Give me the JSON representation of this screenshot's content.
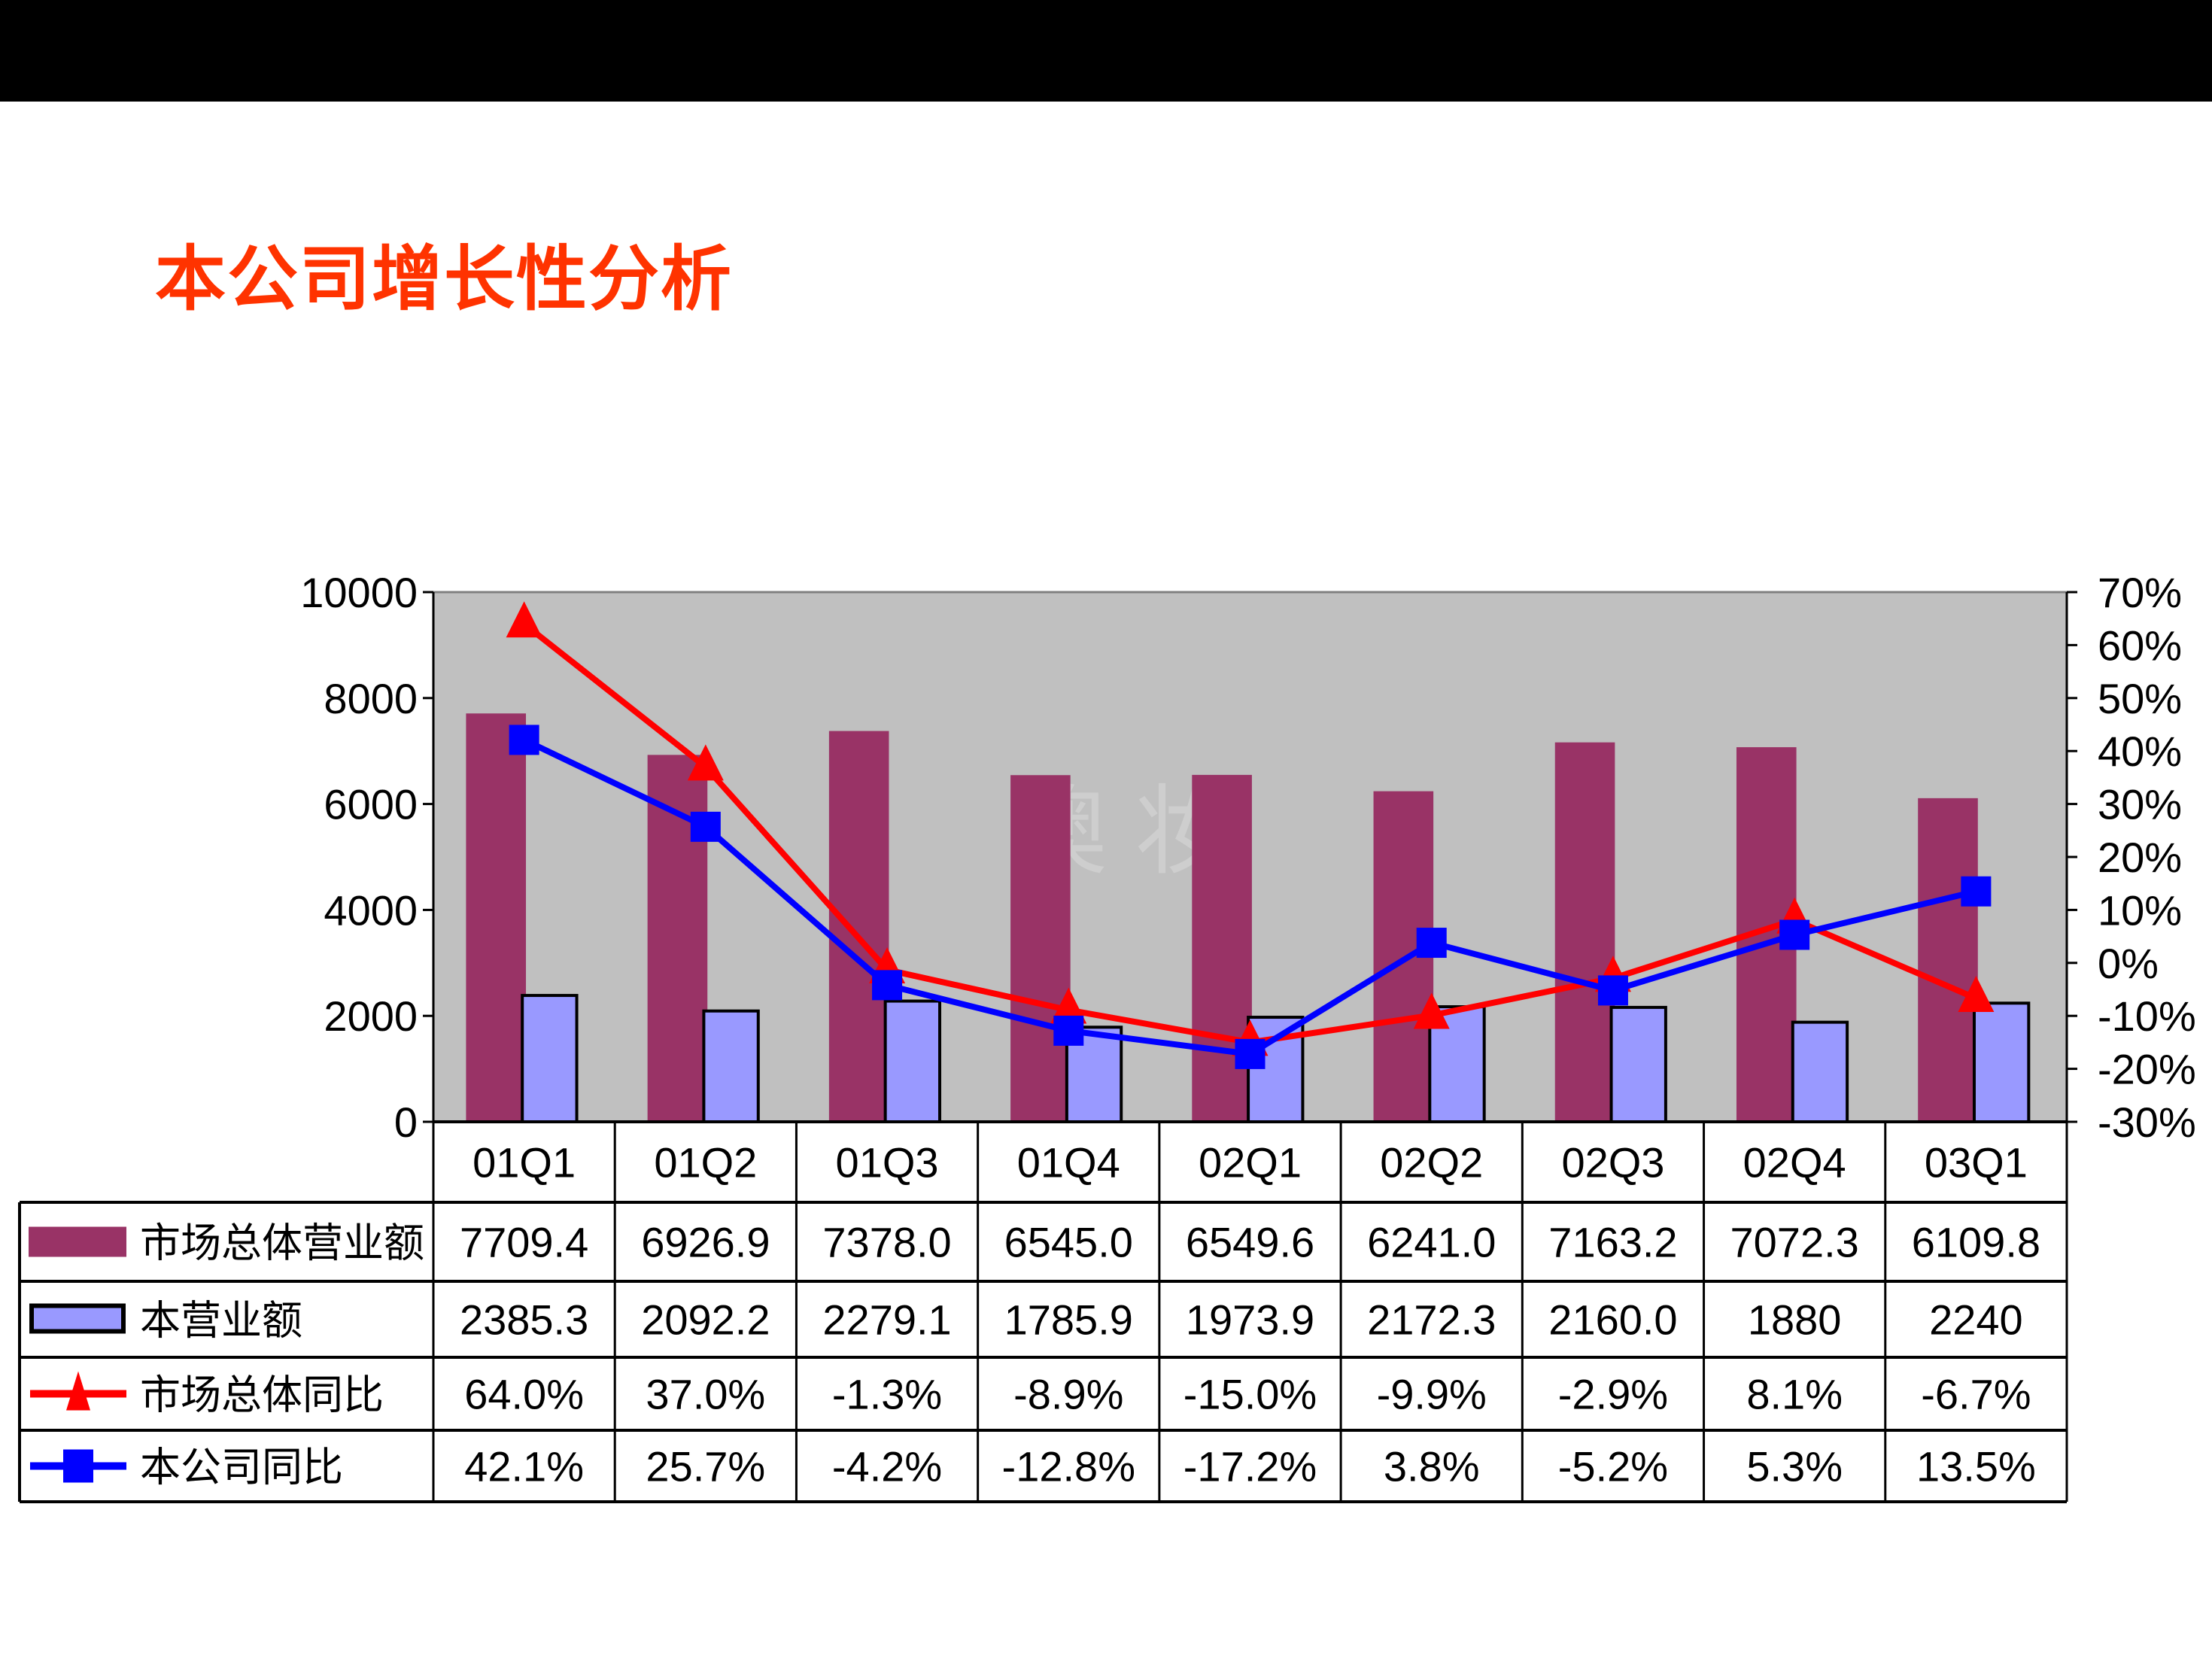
{
  "slide": {
    "title": "本公司增长性分析",
    "watermark": "澳  妆"
  },
  "chart_data": {
    "type": "bar+line",
    "categories": [
      "01Q1",
      "01Q2",
      "01Q3",
      "01Q4",
      "02Q1",
      "02Q2",
      "02Q3",
      "02Q4",
      "03Q1"
    ],
    "left_axis": {
      "ylim": [
        0,
        10000
      ],
      "ticks": [
        "0",
        "2000",
        "4000",
        "6000",
        "8000",
        "10000"
      ],
      "tick_values": [
        0,
        2000,
        4000,
        6000,
        8000,
        10000
      ]
    },
    "right_axis": {
      "ylim": [
        -30,
        70
      ],
      "ticks": [
        "-30%",
        "-20%",
        "-10%",
        "0%",
        "10%",
        "20%",
        "30%",
        "40%",
        "50%",
        "60%",
        "70%"
      ],
      "tick_values": [
        -30,
        -20,
        -10,
        0,
        10,
        20,
        30,
        40,
        50,
        60,
        70
      ]
    },
    "plot_background": "#c0c0c0",
    "grid": false,
    "legend": "data-table",
    "series": [
      {
        "name": "市场总体营业额",
        "type": "bar",
        "axis": "left",
        "color": "#993366",
        "values": [
          7709.4,
          6926.9,
          7378.0,
          6545.0,
          6549.6,
          6241.0,
          7163.2,
          7072.3,
          6109.8
        ],
        "labels": [
          "7709.4",
          "6926.9",
          "7378.0",
          "6545.0",
          "6549.6",
          "6241.0",
          "7163.2",
          "7072.3",
          "6109.8"
        ]
      },
      {
        "name": "本营业额",
        "type": "bar",
        "axis": "left",
        "color": "#9999ff",
        "values": [
          2385.3,
          2092.2,
          2279.1,
          1785.9,
          1973.9,
          2172.3,
          2160.0,
          1880,
          2240
        ],
        "labels": [
          "2385.3",
          "2092.2",
          "2279.1",
          "1785.9",
          "1973.9",
          "2172.3",
          "2160.0",
          "1880",
          "2240"
        ]
      },
      {
        "name": "市场总体同比",
        "type": "line",
        "axis": "right",
        "marker": "triangle",
        "color": "#ff0000",
        "values": [
          64.0,
          37.0,
          -1.3,
          -8.9,
          -15.0,
          -9.9,
          -2.9,
          8.1,
          -6.7
        ],
        "labels": [
          "64.0%",
          "37.0%",
          "-1.3%",
          "-8.9%",
          "-15.0%",
          "-9.9%",
          "-2.9%",
          "8.1%",
          "-6.7%"
        ]
      },
      {
        "name": "本公司同比",
        "type": "line",
        "axis": "right",
        "marker": "square",
        "color": "#0000ff",
        "values": [
          42.1,
          25.7,
          -4.2,
          -12.8,
          -17.2,
          3.8,
          -5.2,
          5.3,
          13.5
        ],
        "labels": [
          "42.1%",
          "25.7%",
          "-4.2%",
          "-12.8%",
          "-17.2%",
          "3.8%",
          "-5.2%",
          "5.3%",
          "13.5%"
        ]
      }
    ]
  }
}
